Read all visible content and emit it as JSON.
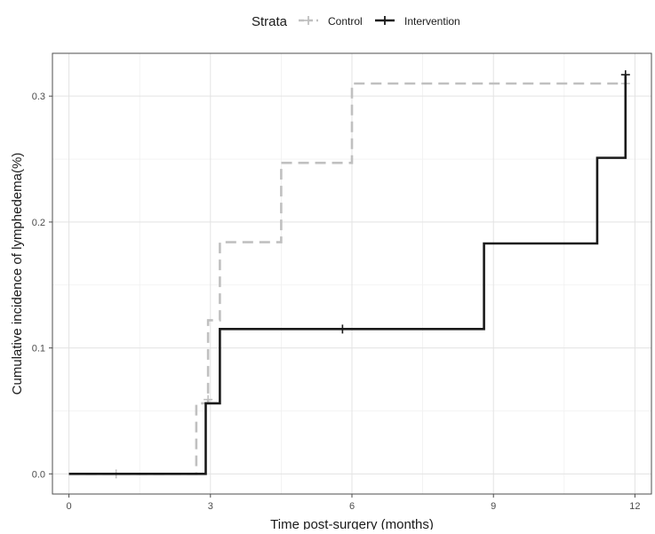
{
  "chart_data": {
    "type": "line",
    "xlabel": "Time post-surgery (months)",
    "ylabel": "Cumulative incidence of lymphedema(%)",
    "xlim": [
      -0.35,
      12.35
    ],
    "ylim": [
      -0.016,
      0.334
    ],
    "x_ticks": [
      0,
      3,
      6,
      9,
      12
    ],
    "y_ticks": [
      0.0,
      0.1,
      0.2,
      0.3
    ],
    "x_tick_labels": [
      "0",
      "3",
      "6",
      "9",
      "12"
    ],
    "y_tick_labels": [
      "0.0",
      "0.1",
      "0.2",
      "0.3"
    ],
    "grid": true,
    "legend": {
      "title": "Strata",
      "position": "top"
    },
    "series": [
      {
        "name": "Control",
        "color": "#c0c0c0",
        "line_style": "dashed",
        "step": true,
        "x": [
          0,
          2.7,
          2.95,
          3.1,
          3.2,
          4.5,
          6.0,
          11.8
        ],
        "y": [
          0.0,
          0.056,
          0.122,
          0.122,
          0.184,
          0.247,
          0.31,
          0.31
        ],
        "censor": [
          [
            1.0,
            0.0
          ],
          [
            2.95,
            0.059
          ],
          [
            11.8,
            0.31
          ]
        ]
      },
      {
        "name": "Intervention",
        "color": "#1a1a1a",
        "line_style": "solid",
        "step": true,
        "x": [
          0,
          2.9,
          3.2,
          8.8,
          11.2,
          11.8
        ],
        "y": [
          0.0,
          0.056,
          0.115,
          0.183,
          0.251,
          0.317
        ],
        "censor": [
          [
            5.8,
            0.115
          ],
          [
            11.8,
            0.317
          ]
        ]
      }
    ]
  }
}
